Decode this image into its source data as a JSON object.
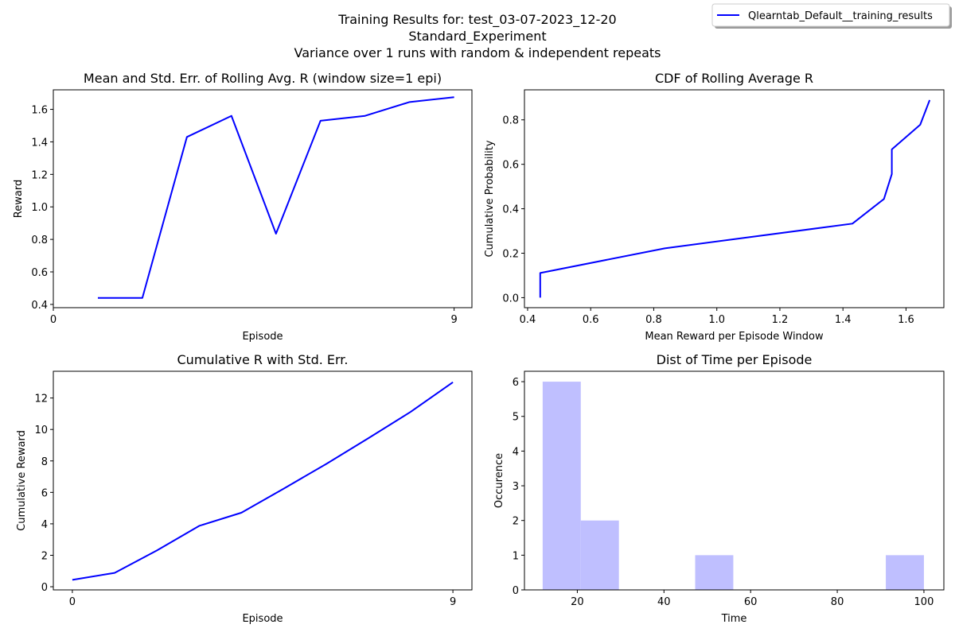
{
  "figure": {
    "suptitle": [
      "Training Results for: test_03-07-2023_12-20",
      "Standard_Experiment",
      "Variance over 1 runs with random & independent repeats"
    ],
    "legend": {
      "label": "Qlearntab_Default__training_results",
      "color": "#0000ff",
      "placement": "top-right"
    }
  },
  "chart_data": [
    {
      "type": "line",
      "title": "Mean and Std. Err. of Rolling Avg. R (window size=1 epi)",
      "xlabel": "Episode",
      "ylabel": "Reward",
      "xlim": [
        0,
        9.4
      ],
      "ylim": [
        0.38,
        1.72
      ],
      "xticks": [
        0,
        9
      ],
      "xtick_labels": [
        "0",
        "9"
      ],
      "yticks": [
        0.4,
        0.6,
        0.8,
        1.0,
        1.2,
        1.4,
        1.6
      ],
      "ytick_labels": [
        "0.4",
        "0.6",
        "0.8",
        "1.0",
        "1.2",
        "1.4",
        "1.6"
      ],
      "grid": false,
      "series": [
        {
          "color": "#0000ff",
          "x": [
            1,
            2,
            3,
            4,
            5,
            6,
            7,
            8,
            9
          ],
          "y": [
            0.44,
            0.44,
            1.43,
            1.56,
            0.835,
            1.53,
            1.56,
            1.645,
            1.675
          ]
        }
      ]
    },
    {
      "type": "line",
      "title": "CDF of Rolling Average R",
      "xlabel": "Mean Reward per Episode Window",
      "ylabel": "Cumulative Probability",
      "xlim": [
        0.39,
        1.72
      ],
      "ylim": [
        -0.045,
        0.935
      ],
      "xticks": [
        0.4,
        0.6,
        0.8,
        1.0,
        1.2,
        1.4,
        1.6
      ],
      "xtick_labels": [
        "0.4",
        "0.6",
        "0.8",
        "1.0",
        "1.2",
        "1.4",
        "1.6"
      ],
      "yticks": [
        0.0,
        0.2,
        0.4,
        0.6,
        0.8
      ],
      "ytick_labels": [
        "0.0",
        "0.2",
        "0.4",
        "0.6",
        "0.8"
      ],
      "grid": false,
      "series": [
        {
          "color": "#0000ff",
          "x": [
            0.44,
            0.44,
            0.835,
            1.43,
            1.53,
            1.555,
            1.555,
            1.645,
            1.675
          ],
          "y": [
            0.0,
            0.111,
            0.222,
            0.333,
            0.444,
            0.556,
            0.667,
            0.778,
            0.889
          ]
        }
      ]
    },
    {
      "type": "line",
      "title": "Cumulative R with Std. Err.",
      "xlabel": "Episode",
      "ylabel": "Cumulative Reward",
      "xlim": [
        -0.45,
        9.45
      ],
      "ylim": [
        -0.2,
        13.7
      ],
      "xticks": [
        0,
        9
      ],
      "xtick_labels": [
        "0",
        "9"
      ],
      "yticks": [
        0,
        2,
        4,
        6,
        8,
        10,
        12
      ],
      "ytick_labels": [
        "0",
        "2",
        "4",
        "6",
        "8",
        "10",
        "12"
      ],
      "grid": false,
      "series": [
        {
          "color": "#0000ff",
          "x": [
            0,
            1,
            2,
            3,
            4,
            5,
            6,
            7,
            8,
            9
          ],
          "y": [
            0.44,
            0.88,
            2.31,
            3.87,
            4.71,
            6.24,
            7.8,
            9.44,
            11.12,
            13.0
          ]
        }
      ]
    },
    {
      "type": "bar",
      "title": "Dist of Time per Episode",
      "xlabel": "Time",
      "ylabel": "Occurence",
      "xlim": [
        7.8,
        104.6
      ],
      "ylim": [
        0,
        6.3
      ],
      "xticks": [
        20,
        40,
        60,
        80,
        100
      ],
      "xtick_labels": [
        "20",
        "40",
        "60",
        "80",
        "100"
      ],
      "yticks": [
        0,
        1,
        2,
        3,
        4,
        5,
        6
      ],
      "ytick_labels": [
        "0",
        "1",
        "2",
        "3",
        "4",
        "5",
        "6"
      ],
      "grid": false,
      "bar_color": "#bfbfff",
      "bin_edges": [
        12.0,
        20.8,
        29.6,
        38.4,
        47.2,
        56.0,
        64.8,
        73.6,
        82.4,
        91.2,
        100.0
      ],
      "counts": [
        6,
        2,
        0,
        0,
        1,
        0,
        0,
        0,
        0,
        1
      ]
    }
  ]
}
